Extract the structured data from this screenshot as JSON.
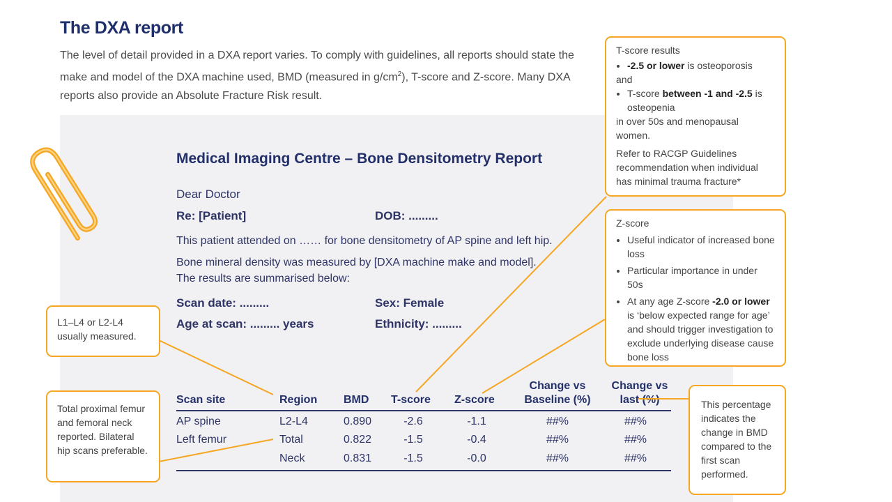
{
  "heading": "The DXA report",
  "intro": {
    "part1": "The level of detail provided in a DXA report varies. To comply with guidelines, all reports should state the make and model of the DXA machine used, BMD (measured in g/cm",
    "superscript": "2",
    "part2": "), T-score and Z-score. Many DXA reports also provide an Absolute Fracture Risk result."
  },
  "report": {
    "title": "Medical Imaging Centre – Bone Densitometry Report",
    "salutation": "Dear Doctor",
    "re_label": "Re: [Patient]",
    "dob_label": "DOB: .........",
    "attended_text": "This patient attended on …… for bone densitometry of AP spine and left hip.",
    "measured_line1": "Bone mineral density was measured by [DXA machine make and model].",
    "measured_line2": "The results are summarised below:",
    "scan_date": "Scan date: .........",
    "sex": "Sex: Female",
    "age_at_scan": "Age at scan: ......... years",
    "ethnicity": "Ethnicity: .........",
    "table": {
      "headers": {
        "scan_site": "Scan site",
        "region": "Region",
        "bmd": "BMD",
        "t_score": "T-score",
        "z_score": "Z-score",
        "change_baseline_l1": "Change vs",
        "change_baseline_l2": "Baseline (%)",
        "change_last_l1": "Change vs",
        "change_last_l2": "last (%)"
      },
      "rows": [
        {
          "site": "AP spine",
          "region": "L2-L4",
          "bmd": "0.890",
          "t": "-2.6",
          "z": "-1.1",
          "baseline": "##%",
          "last": "##%"
        },
        {
          "site": "Left femur",
          "region": "Total",
          "bmd": "0.822",
          "t": "-1.5",
          "z": "-0.4",
          "baseline": "##%",
          "last": "##%"
        },
        {
          "site": "",
          "region": "Neck",
          "bmd": "0.831",
          "t": "-1.5",
          "z": "-0.0",
          "baseline": "##%",
          "last": "##%"
        }
      ]
    }
  },
  "callouts": {
    "tscore": {
      "title": "T-score results",
      "b1_bold": "-2.5 or lower",
      "b1_rest": " is osteoporosis",
      "and": "and",
      "b2_pre": "T-score ",
      "b2_bold": "between -1 and -2.5",
      "b2_rest": " is osteopenia",
      "tail": "in over 50s and menopausal women.",
      "refer": "Refer to RACGP Guidelines recommendation when individual has minimal trauma fracture*"
    },
    "zscore": {
      "title": "Z-score",
      "b1": "Useful indicator of increased bone loss",
      "b2": "Particular importance in under 50s",
      "b3_pre": "At any age Z-score ",
      "b3_bold": "-2.0 or lower",
      "b3_rest": " is ‘below expected range for age’ and should trigger investigation to exclude underlying disease cause bone loss"
    },
    "l1l4": "L1–L4 or L2-L4 usually measured.",
    "femur": "Total proximal femur and femoral neck reported. Bilateral hip scans preferable.",
    "percentage": "This percentage indicates the change in BMD compared to the first scan performed."
  },
  "colors": {
    "navy": "#24306a",
    "orange": "#f5a623",
    "report_bg": "#f1f1f3"
  }
}
